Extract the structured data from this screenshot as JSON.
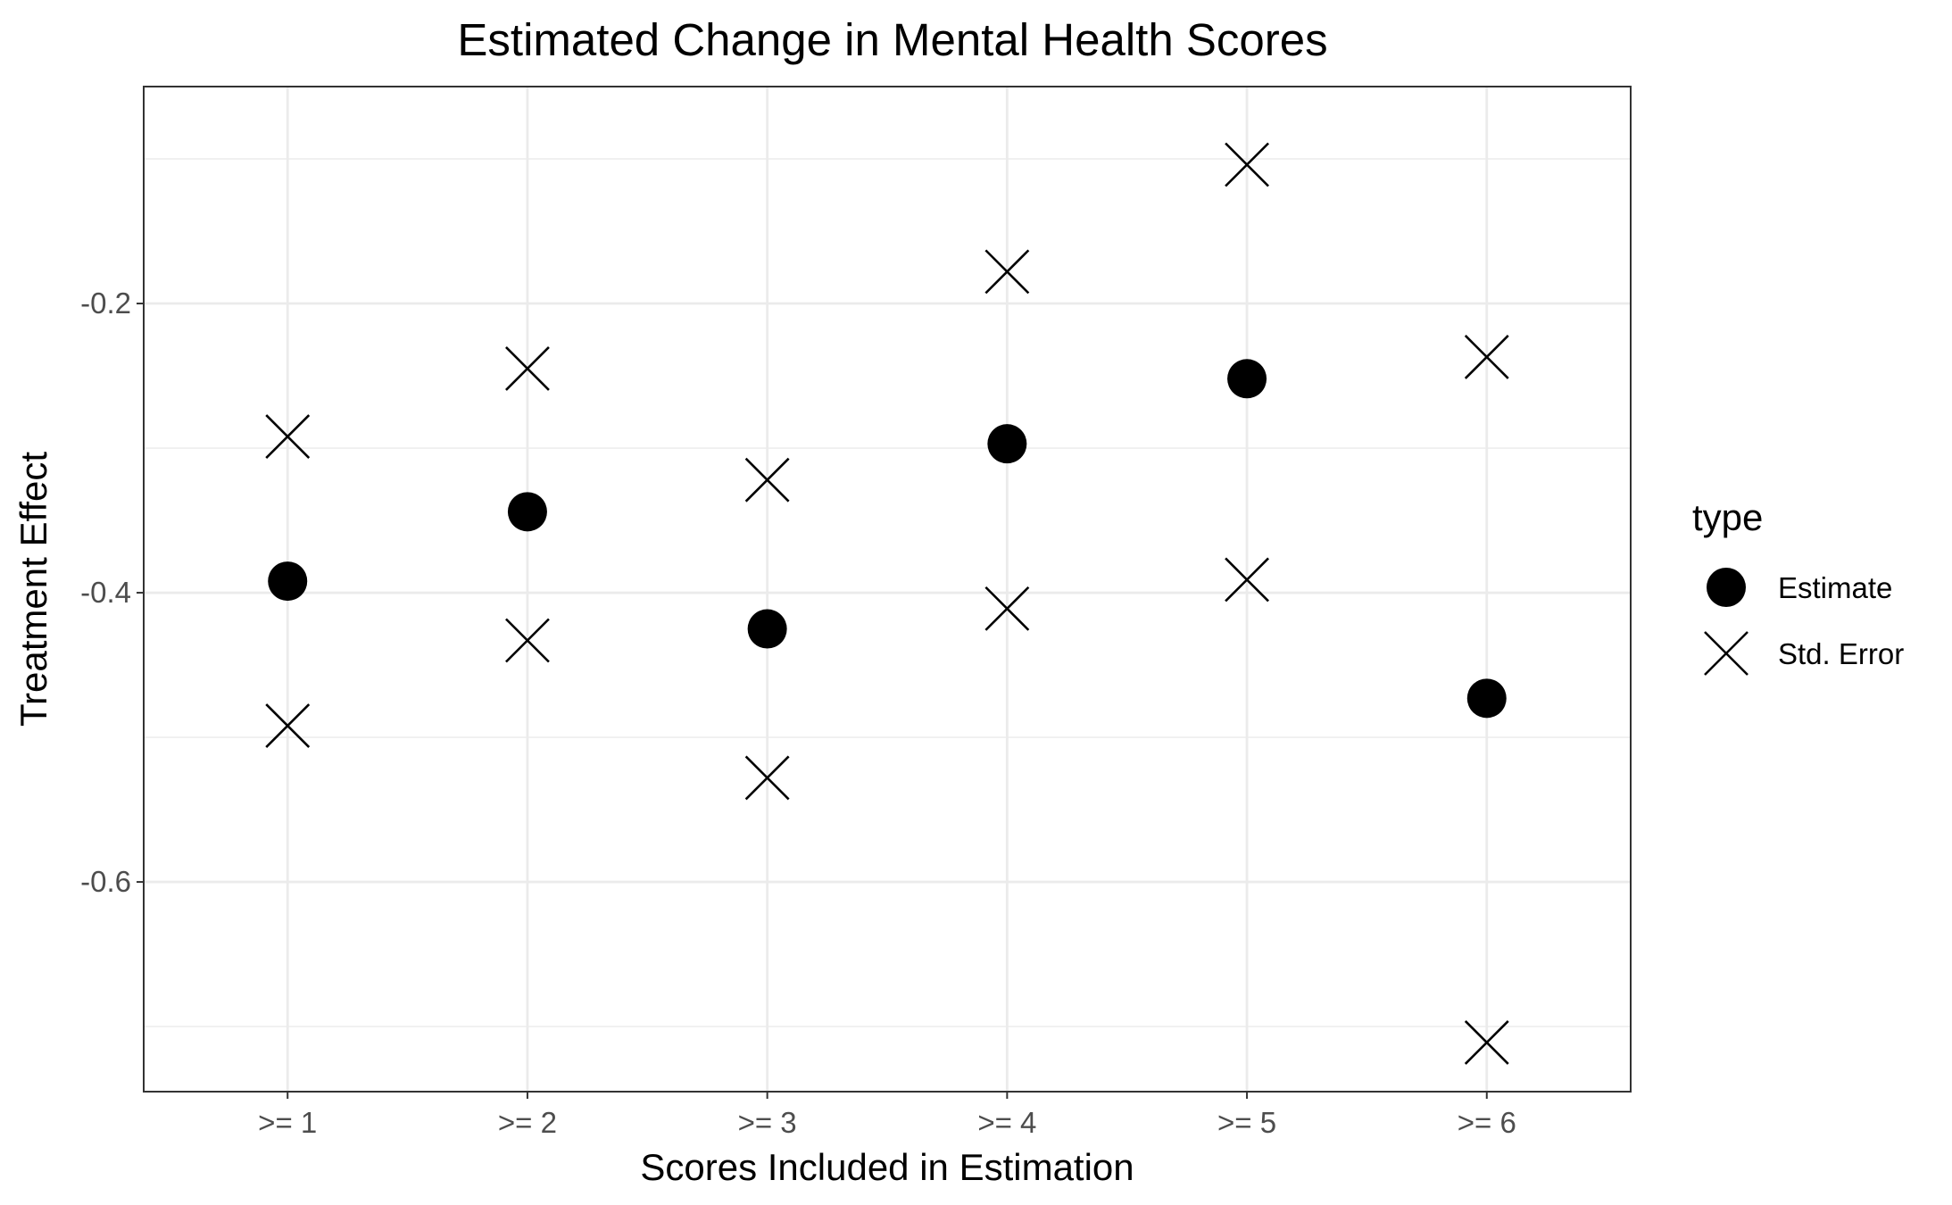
{
  "chart_data": {
    "type": "scatter",
    "title": "Estimated Change in Mental Health Scores",
    "xlabel": "Scores Included in Estimation",
    "ylabel": "Treatment Effect",
    "categories": [
      ">= 1",
      ">= 2",
      ">= 3",
      ">= 4",
      ">= 5",
      ">= 6"
    ],
    "ylim": [
      -0.745,
      -0.05
    ],
    "yticks": [
      -0.6,
      -0.4,
      -0.2
    ],
    "ytick_labels": [
      "-0.6",
      "-0.4",
      "-0.2"
    ],
    "grid": true,
    "legend": {
      "title": "type",
      "placement": "right"
    },
    "series": [
      {
        "name": "Estimate",
        "marker": "circle",
        "values": [
          -0.392,
          -0.344,
          -0.425,
          -0.297,
          -0.252,
          -0.473
        ]
      },
      {
        "name": "Std. Error",
        "marker": "x",
        "values": [
          -0.292,
          -0.245,
          -0.322,
          -0.178,
          -0.104,
          -0.237
        ]
      },
      {
        "name": "Std. Error",
        "marker": "x",
        "values": [
          -0.492,
          -0.433,
          -0.528,
          -0.411,
          -0.391,
          -0.711
        ]
      }
    ]
  }
}
